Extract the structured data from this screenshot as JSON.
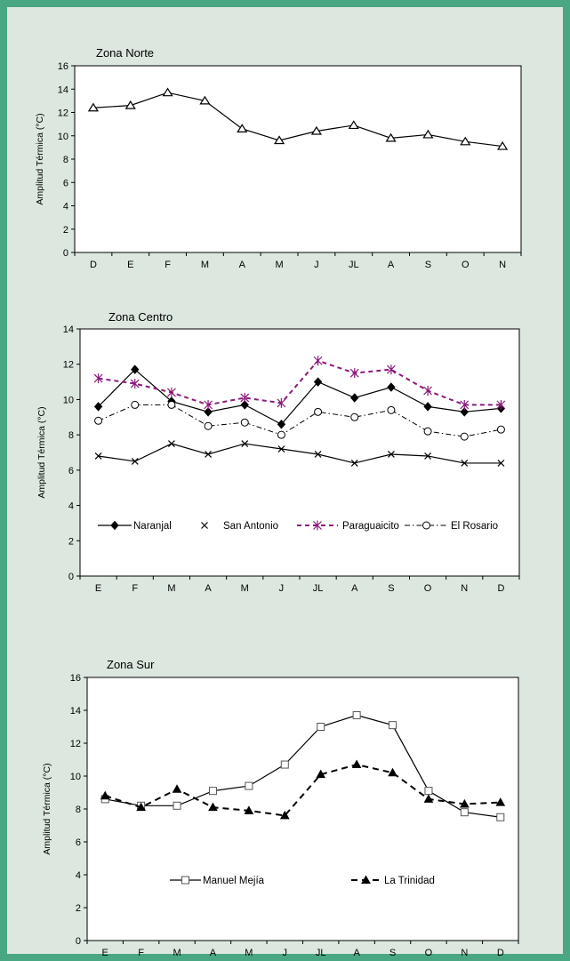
{
  "chart_data": [
    {
      "type": "line",
      "title": "Zona Norte",
      "xlabel": "",
      "ylabel": "Amplitud Térmica (°C)",
      "ylim": [
        0,
        16
      ],
      "yticks": [
        0,
        2,
        4,
        6,
        8,
        10,
        12,
        14,
        16
      ],
      "categories": [
        "D",
        "E",
        "F",
        "M",
        "A",
        "M",
        "J",
        "JL",
        "A",
        "S",
        "O",
        "N"
      ],
      "legend": "none",
      "series": [
        {
          "name": "",
          "color": "#000000",
          "marker": "triangle-open",
          "dash": "solid",
          "values": [
            12.4,
            12.6,
            13.7,
            13.0,
            10.6,
            9.6,
            10.4,
            10.9,
            9.8,
            10.1,
            9.5,
            9.1
          ]
        }
      ]
    },
    {
      "type": "line",
      "title": "Zona Centro",
      "xlabel": "",
      "ylabel": "Amplitud Térmica (°C)",
      "ylim": [
        0,
        14
      ],
      "yticks": [
        0,
        2,
        4,
        6,
        8,
        10,
        12,
        14
      ],
      "categories": [
        "E",
        "F",
        "M",
        "A",
        "M",
        "J",
        "JL",
        "A",
        "S",
        "O",
        "N",
        "D"
      ],
      "legend": "bottom-inside",
      "series": [
        {
          "name": "Naranjal",
          "color": "#000000",
          "marker": "diamond-filled",
          "dash": "solid",
          "values": [
            9.6,
            11.7,
            9.9,
            9.3,
            9.7,
            8.6,
            11.0,
            10.1,
            10.7,
            9.6,
            9.3,
            9.5
          ]
        },
        {
          "name": "San Antonio",
          "color": "#000000",
          "marker": "x",
          "dash": "solid",
          "values": [
            6.8,
            6.5,
            7.5,
            6.9,
            7.5,
            7.2,
            6.9,
            6.4,
            6.9,
            6.8,
            6.4,
            6.4
          ]
        },
        {
          "name": "Paraguaicito",
          "color": "#8b1a7a",
          "marker": "asterisk",
          "dash": "dashed",
          "values": [
            11.2,
            10.9,
            10.4,
            9.7,
            10.1,
            9.8,
            12.2,
            11.5,
            11.7,
            10.5,
            9.7,
            9.7
          ]
        },
        {
          "name": "El Rosario",
          "color": "#000000",
          "marker": "circle-open",
          "dash": "dashdot",
          "values": [
            8.8,
            9.7,
            9.7,
            8.5,
            8.7,
            8.0,
            9.3,
            9.0,
            9.4,
            8.2,
            7.9,
            8.3
          ]
        }
      ]
    },
    {
      "type": "line",
      "title": "Zona Sur",
      "xlabel": "",
      "ylabel": "Amplitud Térmica (°C)",
      "ylim": [
        0,
        16
      ],
      "yticks": [
        0,
        2,
        4,
        6,
        8,
        10,
        12,
        14,
        16
      ],
      "categories": [
        "E",
        "F",
        "M",
        "A",
        "M",
        "J",
        "JL",
        "A",
        "S",
        "O",
        "N",
        "D"
      ],
      "legend": "bottom-inside",
      "series": [
        {
          "name": "Manuel Mejía",
          "color": "#000000",
          "marker": "square-open",
          "dash": "solid",
          "values": [
            8.6,
            8.2,
            8.2,
            9.1,
            9.4,
            10.7,
            13.0,
            13.7,
            13.1,
            9.1,
            7.8,
            7.5
          ]
        },
        {
          "name": "La Trinidad",
          "color": "#000000",
          "marker": "triangle-filled",
          "dash": "dashed-bold",
          "values": [
            8.8,
            8.1,
            9.2,
            8.1,
            7.9,
            7.6,
            10.1,
            10.7,
            10.2,
            8.6,
            8.3,
            8.4
          ]
        }
      ]
    }
  ]
}
